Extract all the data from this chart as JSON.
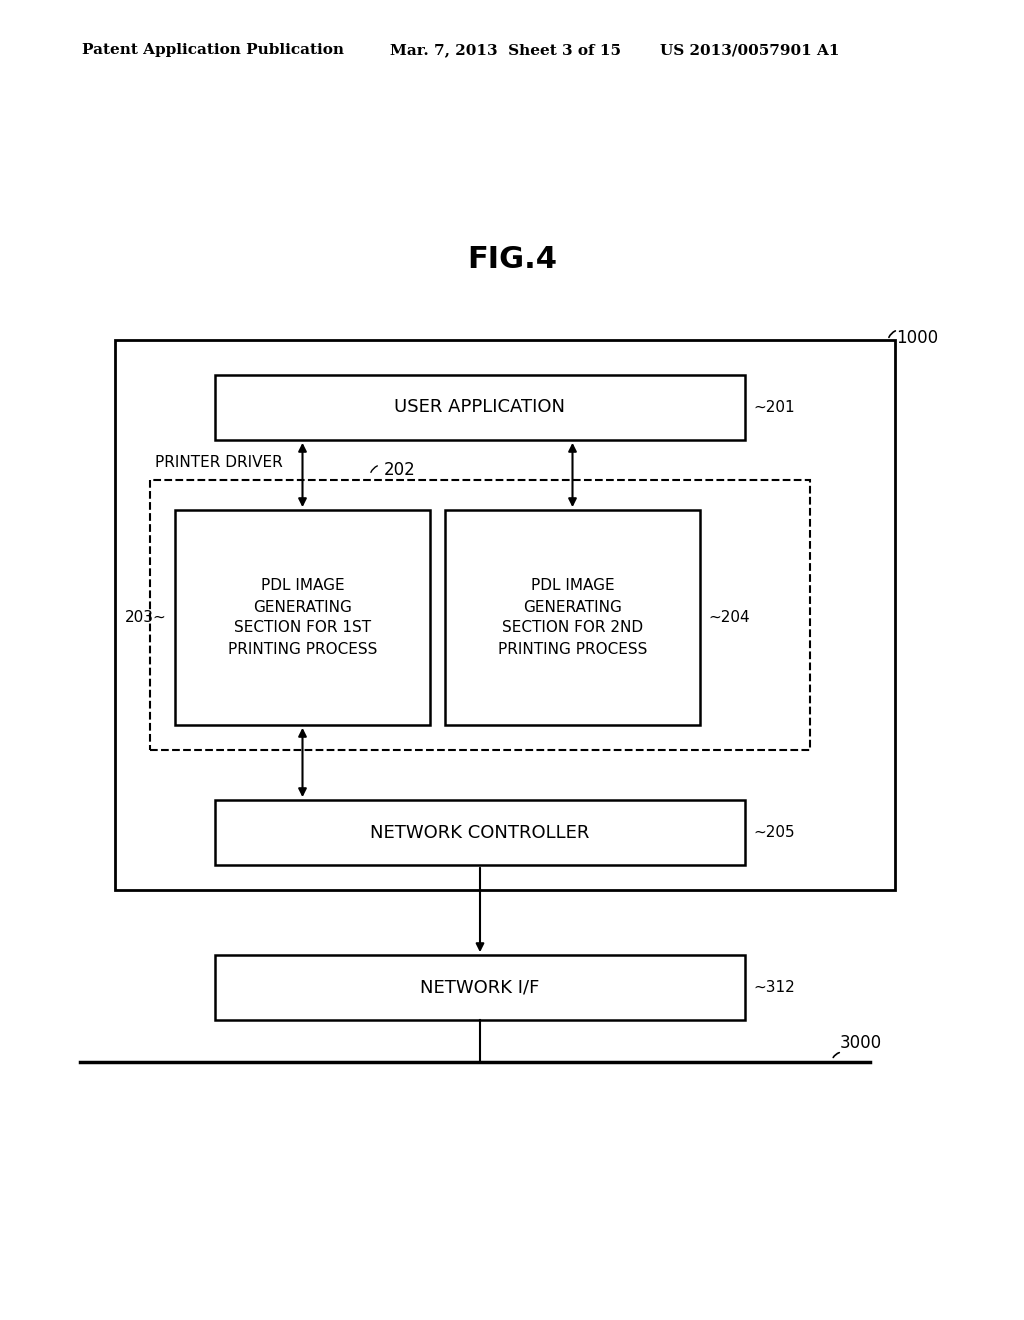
{
  "title": "FIG.4",
  "header_left": "Patent Application Publication",
  "header_mid": "Mar. 7, 2013  Sheet 3 of 15",
  "header_right": "US 2013/0057901 A1",
  "bg_color": "#ffffff",
  "text_color": "#000000",
  "box_color": "#000000",
  "fig_label": "1000",
  "boxes": {
    "user_app": {
      "label": "USER APPLICATION",
      "ref": "201"
    },
    "pdl1": {
      "label": "PDL IMAGE\nGENERATING\nSECTION FOR 1ST\nPRINTING PROCESS",
      "ref": "203"
    },
    "pdl2": {
      "label": "PDL IMAGE\nGENERATING\nSECTION FOR 2ND\nPRINTING PROCESS",
      "ref": "204"
    },
    "network_ctrl": {
      "label": "NETWORK CONTROLLER",
      "ref": "205"
    },
    "network_if": {
      "label": "NETWORK I/F",
      "ref": "312"
    }
  },
  "labels": {
    "printer_driver": "PRINTER DRIVER",
    "label_202": "202",
    "label_3000": "3000"
  }
}
